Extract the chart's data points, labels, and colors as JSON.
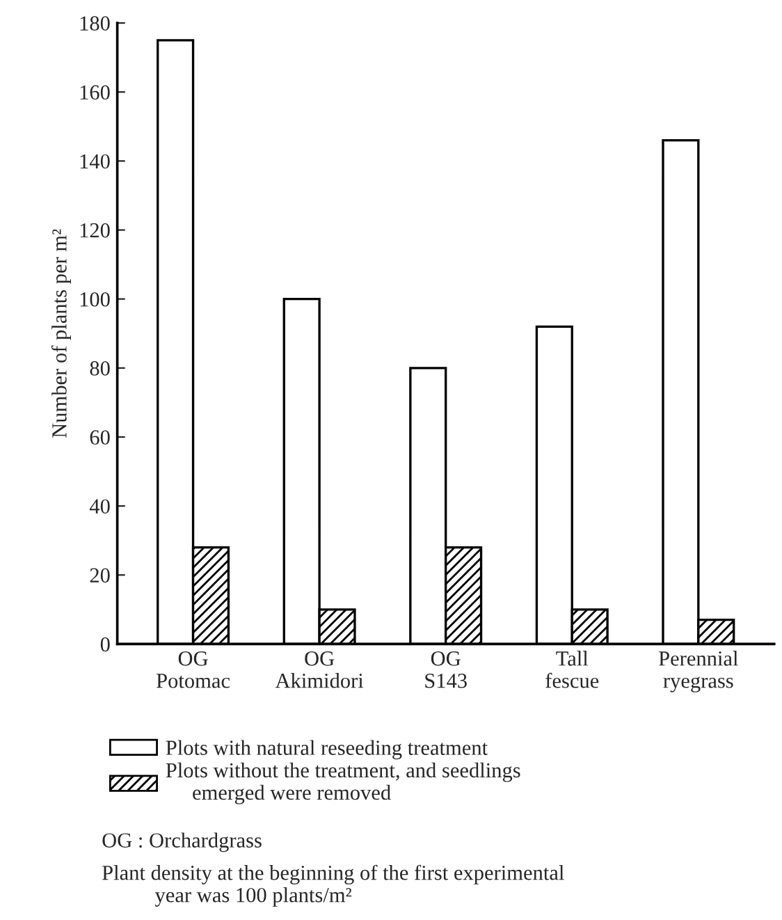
{
  "chart_data": {
    "type": "bar",
    "ylabel": "Number of plants per m²",
    "categories": [
      "OG\nPotomac",
      "OG\nAkimidori",
      "OG\nS143",
      "Tall\nfescue",
      "Perennial\nryegrass"
    ],
    "series": [
      {
        "name": "Plots with natural reseeding treatment",
        "color": "#ffffff",
        "values": [
          175,
          100,
          80,
          92,
          146
        ]
      },
      {
        "name": "Plots without the treatment, and seedlings\n     emerged were removed",
        "color": "#000000",
        "values": [
          28,
          10,
          28,
          10,
          7
        ]
      }
    ],
    "ylim": [
      0,
      180
    ],
    "yticks": [
      0,
      20,
      40,
      60,
      80,
      100,
      120,
      140,
      160,
      180
    ],
    "grid": false,
    "legend": "bottom",
    "annotations": [
      "OG : Orchardgrass",
      "Plant density at the beginning of the first experimental\n          year was 100 plants/m²"
    ]
  }
}
